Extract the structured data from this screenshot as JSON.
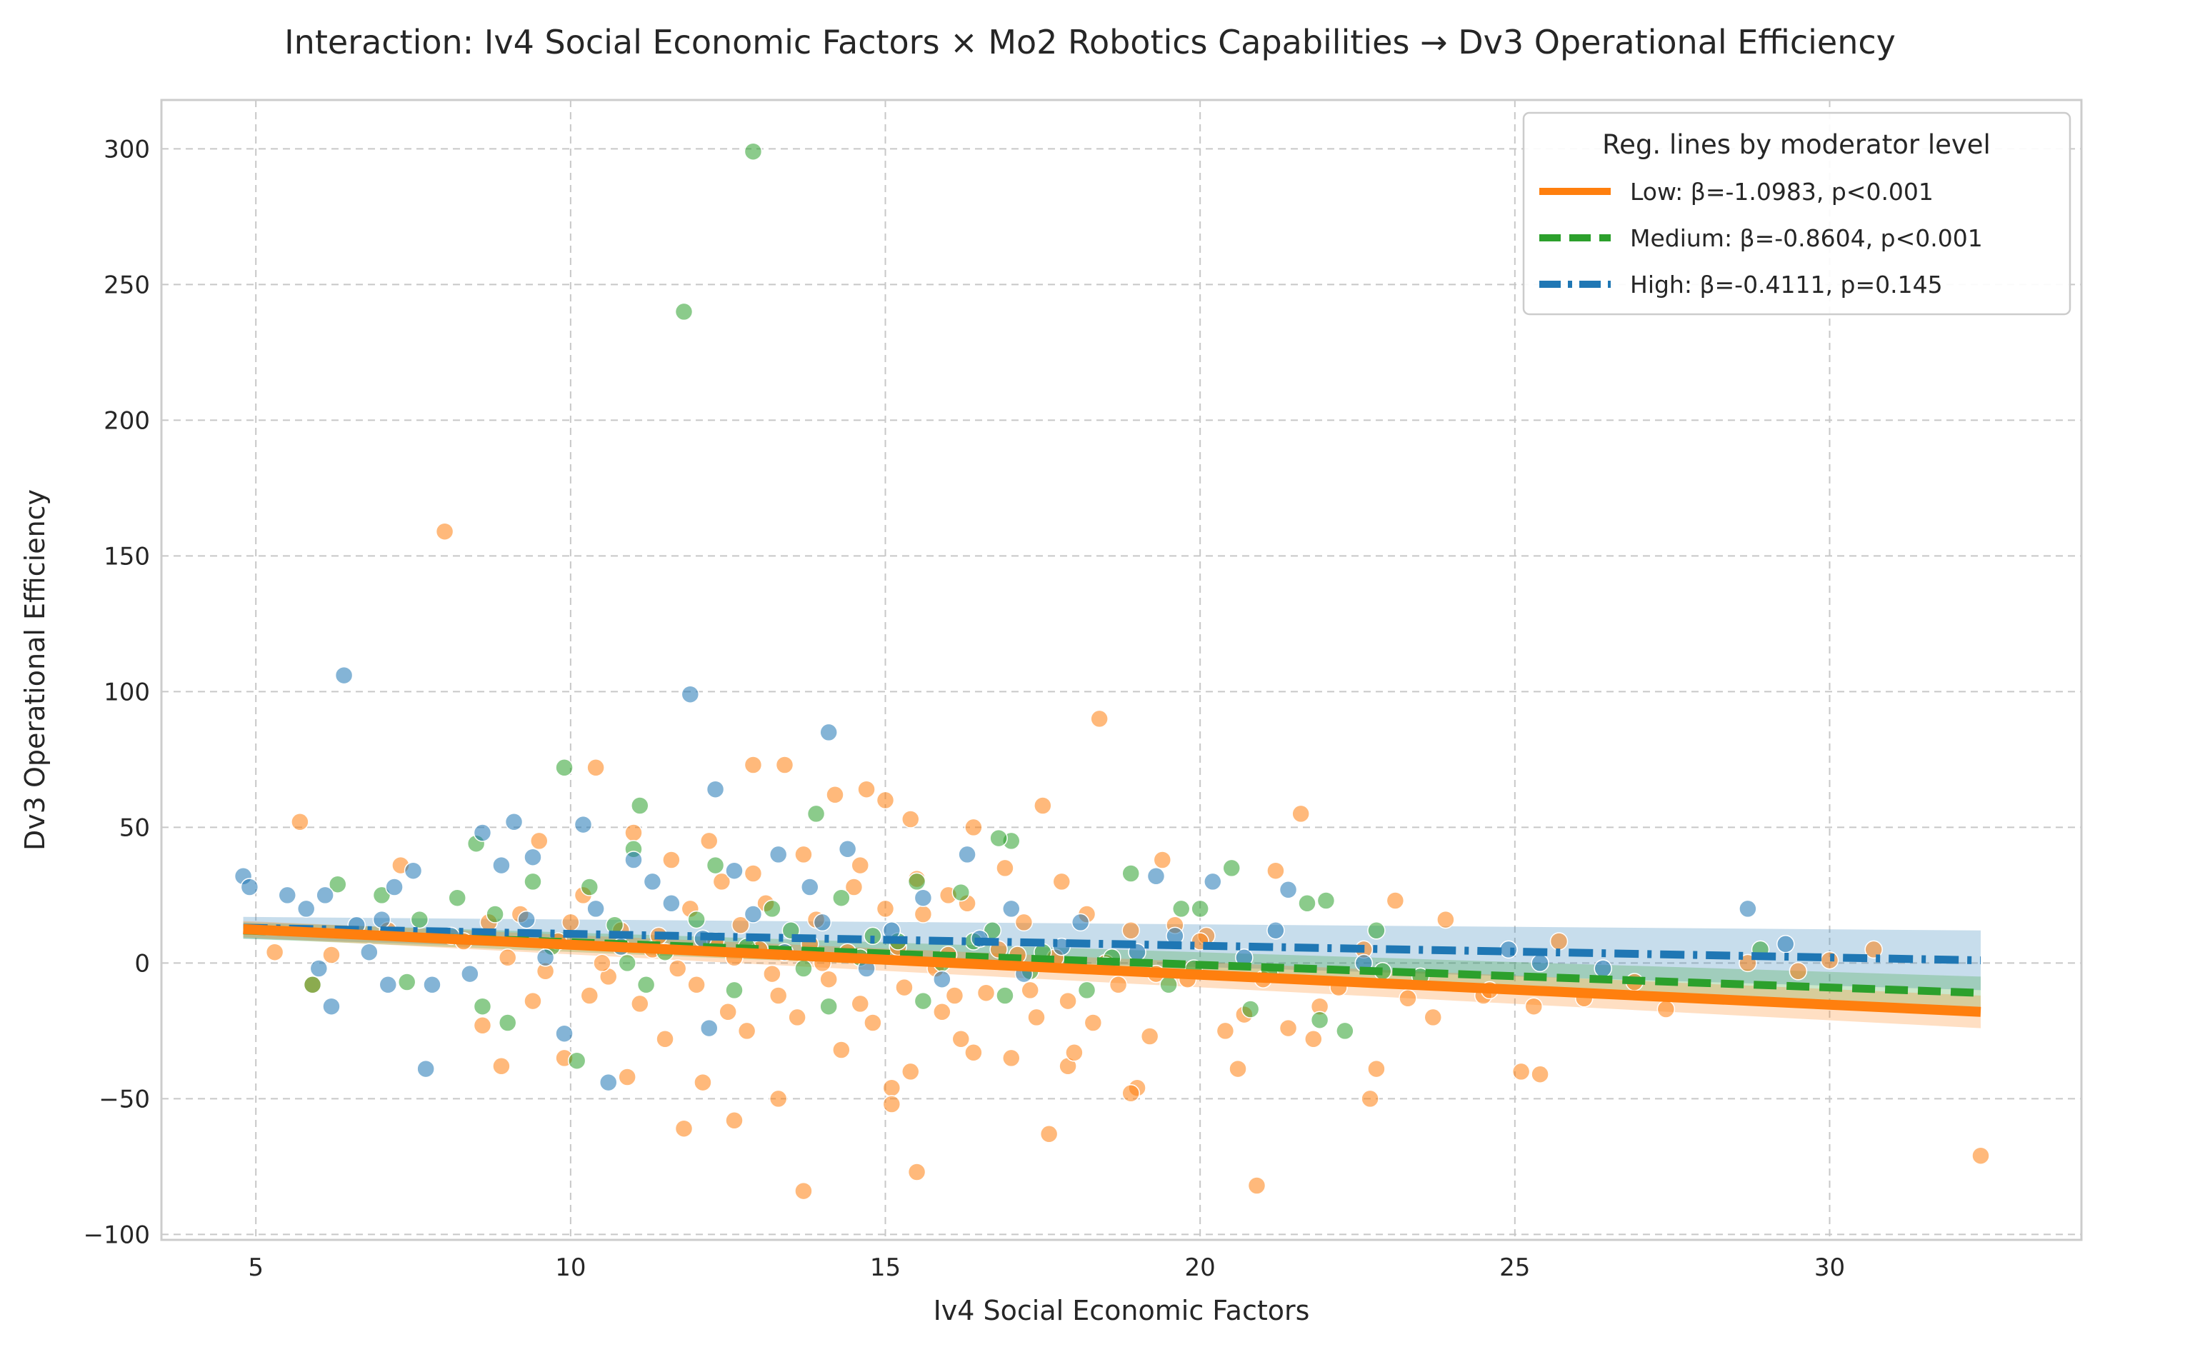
{
  "chart_data": {
    "type": "scatter",
    "title": "Interaction: Iv4 Social Economic Factors × Mo2 Robotics Capabilities → Dv3 Operational Efficiency",
    "xlabel": "Iv4 Social Economic Factors",
    "ylabel": "Dv3 Operational Efficiency",
    "xlim": [
      3.5,
      34
    ],
    "ylim": [
      -102,
      318
    ],
    "xticks": [
      5,
      10,
      15,
      20,
      25,
      30
    ],
    "yticks": [
      -100,
      -50,
      0,
      50,
      100,
      150,
      200,
      250,
      300
    ],
    "ytick_labels": [
      "−100",
      "−50",
      "0",
      "50",
      "100",
      "150",
      "200",
      "250",
      "300"
    ],
    "grid": true,
    "legend": {
      "title": "Reg. lines by moderator level",
      "placement": "top-right",
      "entries": [
        "Low: β=-1.0983, p<0.001",
        "Medium: β=-0.8604, p<0.001",
        "High: β=-0.4111, p=0.145"
      ]
    },
    "colors": {
      "Low": "#ff7f0e",
      "Medium": "#2ca02c",
      "High": "#1f77b4"
    },
    "series": [
      {
        "name": "Low",
        "color": "#ff7f0e",
        "line_style": "solid",
        "line": {
          "x": [
            4.8,
            32.4
          ],
          "y": [
            12.5,
            -18
          ]
        },
        "band": {
          "upper": [
            15.5,
            -12
          ],
          "lower": [
            9.5,
            -24
          ]
        },
        "points": [
          [
            8.0,
            159
          ],
          [
            18.4,
            90
          ],
          [
            14.7,
            64
          ],
          [
            12.9,
            73
          ],
          [
            13.4,
            73
          ],
          [
            10.4,
            72
          ],
          [
            5.7,
            52
          ],
          [
            16.4,
            50
          ],
          [
            15.4,
            53
          ],
          [
            21.6,
            55
          ],
          [
            17.5,
            58
          ],
          [
            14.2,
            62
          ],
          [
            15.0,
            60
          ],
          [
            12.2,
            45
          ],
          [
            9.5,
            45
          ],
          [
            11.0,
            48
          ],
          [
            11.6,
            38
          ],
          [
            13.7,
            40
          ],
          [
            16.9,
            35
          ],
          [
            21.2,
            34
          ],
          [
            23.1,
            23
          ],
          [
            23.9,
            16
          ],
          [
            12.4,
            30
          ],
          [
            14.5,
            28
          ],
          [
            17.8,
            30
          ],
          [
            19.4,
            38
          ],
          [
            10.2,
            25
          ],
          [
            11.9,
            20
          ],
          [
            13.1,
            22
          ],
          [
            15.6,
            18
          ],
          [
            18.9,
            12
          ],
          [
            20.1,
            10
          ],
          [
            22.6,
            5
          ],
          [
            9.8,
            8
          ],
          [
            11.3,
            5
          ],
          [
            12.6,
            2
          ],
          [
            14.0,
            0
          ],
          [
            15.8,
            -2
          ],
          [
            17.1,
            3
          ],
          [
            19.3,
            -4
          ],
          [
            21.0,
            -6
          ],
          [
            22.2,
            -9
          ],
          [
            24.5,
            -12
          ],
          [
            26.1,
            -13
          ],
          [
            27.4,
            -17
          ],
          [
            25.3,
            -16
          ],
          [
            10.6,
            -5
          ],
          [
            12.0,
            -8
          ],
          [
            13.3,
            -12
          ],
          [
            14.6,
            -15
          ],
          [
            15.9,
            -18
          ],
          [
            17.4,
            -20
          ],
          [
            18.3,
            -22
          ],
          [
            20.4,
            -25
          ],
          [
            21.8,
            -28
          ],
          [
            22.7,
            -50
          ],
          [
            22.8,
            -39
          ],
          [
            20.6,
            -39
          ],
          [
            19.0,
            -46
          ],
          [
            18.9,
            -48
          ],
          [
            17.6,
            -63
          ],
          [
            17.9,
            -38
          ],
          [
            16.4,
            -33
          ],
          [
            15.4,
            -40
          ],
          [
            15.1,
            -46
          ],
          [
            15.1,
            -52
          ],
          [
            15.5,
            -77
          ],
          [
            13.7,
            -84
          ],
          [
            13.3,
            -50
          ],
          [
            12.6,
            -58
          ],
          [
            11.8,
            -61
          ],
          [
            12.1,
            -44
          ],
          [
            10.9,
            -42
          ],
          [
            9.9,
            -35
          ],
          [
            8.9,
            -38
          ],
          [
            8.6,
            -23
          ],
          [
            9.4,
            -14
          ],
          [
            11.5,
            -28
          ],
          [
            12.8,
            -25
          ],
          [
            14.3,
            -32
          ],
          [
            16.2,
            -28
          ],
          [
            17.0,
            -35
          ],
          [
            18.0,
            -33
          ],
          [
            19.2,
            -27
          ],
          [
            20.9,
            -82
          ],
          [
            25.1,
            -40
          ],
          [
            25.4,
            -41
          ],
          [
            32.4,
            -71
          ],
          [
            25.7,
            8
          ],
          [
            30.7,
            5
          ],
          [
            30.0,
            1
          ],
          [
            28.7,
            0
          ],
          [
            29.5,
            -3
          ],
          [
            26.9,
            -7
          ],
          [
            24.6,
            -10
          ],
          [
            23.7,
            -20
          ],
          [
            23.3,
            -13
          ],
          [
            21.4,
            -24
          ],
          [
            21.9,
            -16
          ],
          [
            20.7,
            -19
          ],
          [
            5.3,
            4
          ],
          [
            5.9,
            -8
          ],
          [
            6.2,
            3
          ],
          [
            7.3,
            36
          ],
          [
            7.1,
            12
          ],
          [
            8.3,
            8
          ],
          [
            8.7,
            15
          ],
          [
            9.2,
            18
          ],
          [
            10.0,
            15
          ],
          [
            10.8,
            12
          ],
          [
            11.4,
            10
          ],
          [
            12.3,
            8
          ],
          [
            13.0,
            5
          ],
          [
            13.8,
            7
          ],
          [
            14.4,
            4
          ],
          [
            15.2,
            6
          ],
          [
            16.0,
            3
          ],
          [
            16.8,
            5
          ],
          [
            17.7,
            2
          ],
          [
            18.5,
            0
          ],
          [
            10.3,
            -12
          ],
          [
            11.1,
            -15
          ],
          [
            12.5,
            -18
          ],
          [
            13.6,
            -20
          ],
          [
            14.8,
            -22
          ],
          [
            16.1,
            -12
          ],
          [
            17.3,
            -10
          ],
          [
            18.7,
            -8
          ],
          [
            19.8,
            -6
          ],
          [
            11.7,
            -2
          ],
          [
            13.2,
            -4
          ],
          [
            14.1,
            -6
          ],
          [
            15.3,
            -9
          ],
          [
            16.6,
            -11
          ],
          [
            17.9,
            -14
          ],
          [
            9.0,
            2
          ],
          [
            9.6,
            -3
          ],
          [
            10.5,
            0
          ],
          [
            12.7,
            14
          ],
          [
            13.9,
            16
          ],
          [
            15.0,
            20
          ],
          [
            16.3,
            22
          ],
          [
            17.2,
            15
          ],
          [
            18.2,
            18
          ],
          [
            19.6,
            14
          ],
          [
            20.0,
            8
          ],
          [
            14.6,
            36
          ],
          [
            15.5,
            31
          ],
          [
            16.0,
            25
          ],
          [
            12.9,
            33
          ]
        ]
      },
      {
        "name": "Medium",
        "color": "#2ca02c",
        "line_style": "dashed",
        "line": {
          "x": [
            4.8,
            32.4
          ],
          "y": [
            12,
            -11
          ]
        },
        "band": {
          "upper": [
            15,
            -5
          ],
          "lower": [
            9,
            -17
          ]
        },
        "points": [
          [
            12.9,
            299
          ],
          [
            11.8,
            240
          ],
          [
            9.9,
            72
          ],
          [
            11.1,
            58
          ],
          [
            17.0,
            45
          ],
          [
            16.8,
            46
          ],
          [
            13.9,
            55
          ],
          [
            11.0,
            42
          ],
          [
            12.3,
            36
          ],
          [
            8.5,
            44
          ],
          [
            20.5,
            35
          ],
          [
            18.9,
            33
          ],
          [
            22.0,
            23
          ],
          [
            21.7,
            22
          ],
          [
            22.8,
            12
          ],
          [
            28.9,
            5
          ],
          [
            20.0,
            20
          ],
          [
            19.7,
            20
          ],
          [
            16.2,
            26
          ],
          [
            15.5,
            30
          ],
          [
            14.3,
            24
          ],
          [
            13.2,
            20
          ],
          [
            10.3,
            28
          ],
          [
            9.4,
            30
          ],
          [
            8.2,
            24
          ],
          [
            7.0,
            25
          ],
          [
            6.3,
            29
          ],
          [
            7.6,
            16
          ],
          [
            8.8,
            18
          ],
          [
            10.7,
            14
          ],
          [
            12.0,
            16
          ],
          [
            13.5,
            12
          ],
          [
            14.8,
            10
          ],
          [
            16.4,
            8
          ],
          [
            17.5,
            4
          ],
          [
            18.6,
            2
          ],
          [
            19.9,
            -2
          ],
          [
            21.1,
            -4
          ],
          [
            22.9,
            -3
          ],
          [
            23.5,
            -5
          ],
          [
            20.8,
            -17
          ],
          [
            21.9,
            -21
          ],
          [
            22.3,
            -25
          ],
          [
            19.5,
            -8
          ],
          [
            18.2,
            -10
          ],
          [
            16.9,
            -12
          ],
          [
            15.6,
            -14
          ],
          [
            14.1,
            -16
          ],
          [
            12.6,
            -10
          ],
          [
            11.2,
            -8
          ],
          [
            10.1,
            -36
          ],
          [
            9.0,
            -22
          ],
          [
            8.6,
            -16
          ],
          [
            7.4,
            -7
          ],
          [
            5.9,
            -8
          ],
          [
            11.5,
            4
          ],
          [
            12.8,
            6
          ],
          [
            14.6,
            2
          ],
          [
            15.9,
            0
          ],
          [
            17.3,
            -3
          ],
          [
            9.7,
            6
          ],
          [
            10.9,
            0
          ],
          [
            13.7,
            -2
          ],
          [
            15.2,
            8
          ],
          [
            16.7,
            12
          ]
        ]
      },
      {
        "name": "High",
        "color": "#1f77b4",
        "line_style": "dashdot",
        "line": {
          "x": [
            4.8,
            32.4
          ],
          "y": [
            13,
            1
          ]
        },
        "band": {
          "upper": [
            17,
            12
          ],
          "lower": [
            9,
            -10
          ]
        },
        "points": [
          [
            6.4,
            106
          ],
          [
            11.9,
            99
          ],
          [
            14.1,
            85
          ],
          [
            12.3,
            64
          ],
          [
            8.6,
            48
          ],
          [
            9.1,
            52
          ],
          [
            10.2,
            51
          ],
          [
            4.8,
            32
          ],
          [
            4.9,
            28
          ],
          [
            5.5,
            25
          ],
          [
            6.1,
            25
          ],
          [
            5.8,
            20
          ],
          [
            6.6,
            14
          ],
          [
            7.2,
            28
          ],
          [
            7.5,
            34
          ],
          [
            7.0,
            16
          ],
          [
            7.8,
            -8
          ],
          [
            6.2,
            -16
          ],
          [
            7.7,
            -39
          ],
          [
            10.6,
            -44
          ],
          [
            9.9,
            -26
          ],
          [
            12.2,
            -24
          ],
          [
            19.3,
            32
          ],
          [
            20.2,
            30
          ],
          [
            21.4,
            27
          ],
          [
            21.2,
            12
          ],
          [
            28.7,
            20
          ],
          [
            29.3,
            7
          ],
          [
            26.4,
            -2
          ],
          [
            25.4,
            0
          ],
          [
            24.9,
            5
          ],
          [
            22.6,
            0
          ],
          [
            19.0,
            4
          ],
          [
            17.8,
            6
          ],
          [
            16.5,
            9
          ],
          [
            15.1,
            12
          ],
          [
            14.0,
            15
          ],
          [
            12.9,
            18
          ],
          [
            11.6,
            22
          ],
          [
            10.4,
            20
          ],
          [
            9.3,
            16
          ],
          [
            8.1,
            10
          ],
          [
            6.8,
            4
          ],
          [
            6.0,
            -2
          ],
          [
            7.1,
            -8
          ],
          [
            8.4,
            -4
          ],
          [
            9.6,
            2
          ],
          [
            10.8,
            6
          ],
          [
            12.1,
            9
          ],
          [
            13.4,
            4
          ],
          [
            14.7,
            -2
          ],
          [
            15.9,
            -6
          ],
          [
            17.2,
            -4
          ],
          [
            18.5,
            -1
          ],
          [
            11.3,
            30
          ],
          [
            12.6,
            34
          ],
          [
            13.3,
            40
          ],
          [
            14.4,
            42
          ],
          [
            16.3,
            40
          ],
          [
            11.0,
            38
          ],
          [
            9.4,
            39
          ],
          [
            8.9,
            36
          ],
          [
            13.8,
            28
          ],
          [
            15.6,
            24
          ],
          [
            17.0,
            20
          ],
          [
            18.1,
            15
          ],
          [
            19.6,
            10
          ],
          [
            20.7,
            2
          ]
        ]
      }
    ]
  }
}
